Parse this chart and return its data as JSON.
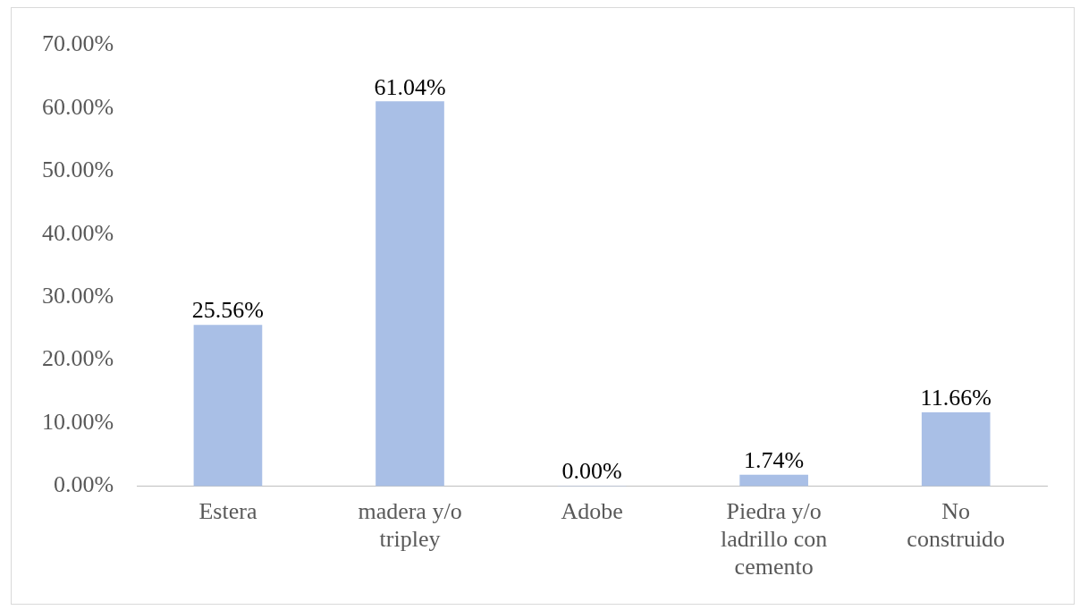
{
  "chart_data": {
    "type": "bar",
    "categories": [
      "Estera",
      "madera y/o tripley",
      "Adobe",
      "Piedra y/o ladrillo con cemento",
      "No construido"
    ],
    "values": [
      25.56,
      61.04,
      0.0,
      1.74,
      11.66
    ],
    "value_labels": [
      "25.56%",
      "61.04%",
      "0.00%",
      "1.74%",
      "11.66%"
    ],
    "color": "#a9bfe6",
    "ylim": [
      0,
      70
    ],
    "yticks": [
      {
        "value": 0,
        "label": "0.00%"
      },
      {
        "value": 10,
        "label": "10.00%"
      },
      {
        "value": 20,
        "label": "20.00%"
      },
      {
        "value": 30,
        "label": "30.00%"
      },
      {
        "value": 40,
        "label": "40.00%"
      },
      {
        "value": 50,
        "label": "50.00%"
      },
      {
        "value": 60,
        "label": "60.00%"
      },
      {
        "value": 70,
        "label": "70.00%"
      }
    ],
    "grid": false,
    "legend": false
  }
}
